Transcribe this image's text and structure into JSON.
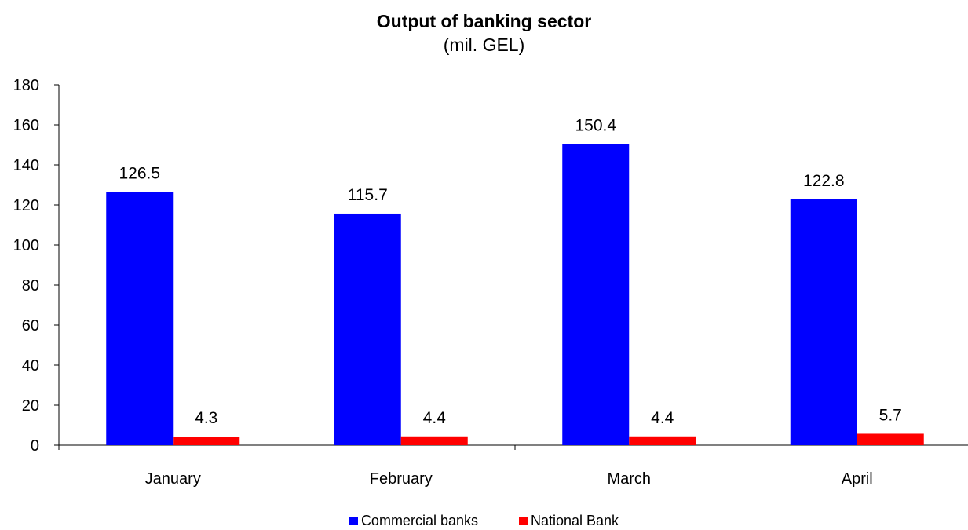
{
  "chart_data": {
    "type": "bar",
    "title": "Output of banking sector",
    "subtitle": "(mil. GEL)",
    "xlabel": "",
    "ylabel": "",
    "categories": [
      "January",
      "February",
      "March",
      "April"
    ],
    "series": [
      {
        "name": "Commercial banks",
        "values": [
          126.5,
          115.7,
          150.4,
          122.8
        ],
        "color": "#0000FF"
      },
      {
        "name": "National Bank",
        "values": [
          4.3,
          4.4,
          4.4,
          5.7
        ],
        "color": "#FF0000"
      }
    ],
    "ylim": [
      0,
      180
    ],
    "yticks": [
      0,
      20,
      40,
      60,
      80,
      100,
      120,
      140,
      160,
      180
    ],
    "grid": false,
    "legend": "bottom",
    "data_labels": true
  }
}
